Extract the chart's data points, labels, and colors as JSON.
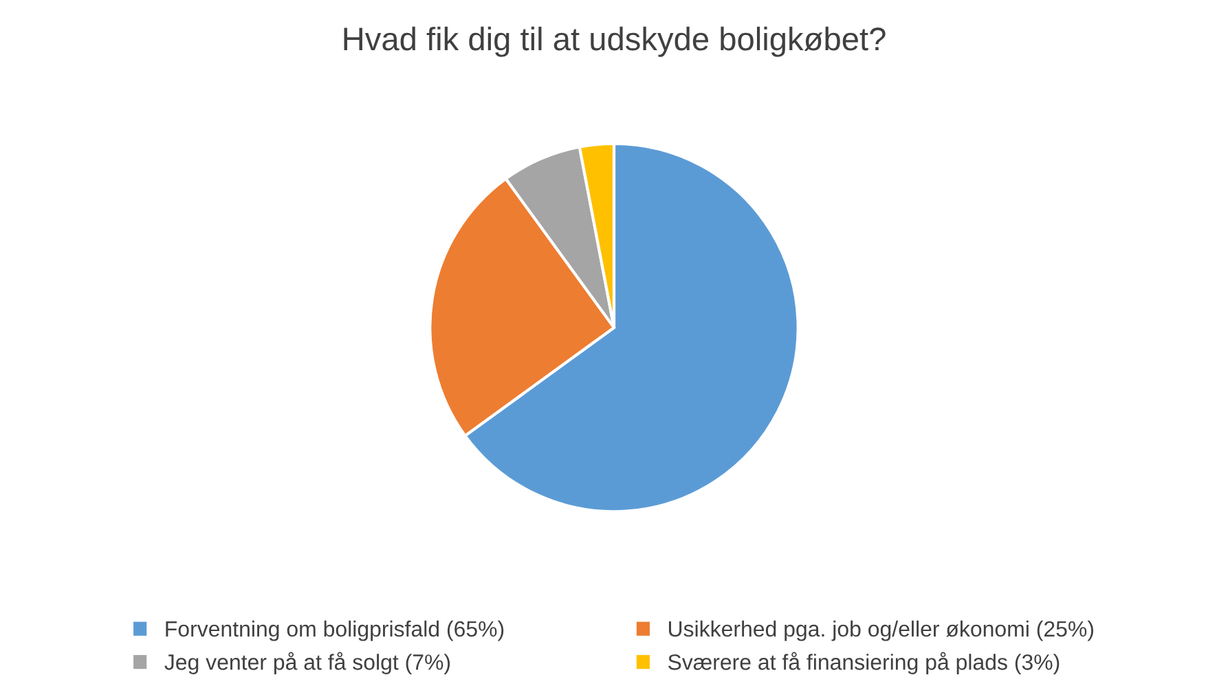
{
  "chart_data": {
    "type": "pie",
    "title": "Hvad fik dig til at udskyde boligkøbet?",
    "categories": [
      "Forventning om boligprisfald (65%)",
      "Usikkerhed pga. job og/eller økonomi (25%)",
      "Jeg venter på at få solgt (7%)",
      "Sværere at få finansiering på plads (3%)"
    ],
    "values": [
      65,
      25,
      7,
      3
    ],
    "colors": [
      "#5b9bd5",
      "#ed7d31",
      "#a5a5a5",
      "#ffc000"
    ],
    "legend": "bottom"
  }
}
